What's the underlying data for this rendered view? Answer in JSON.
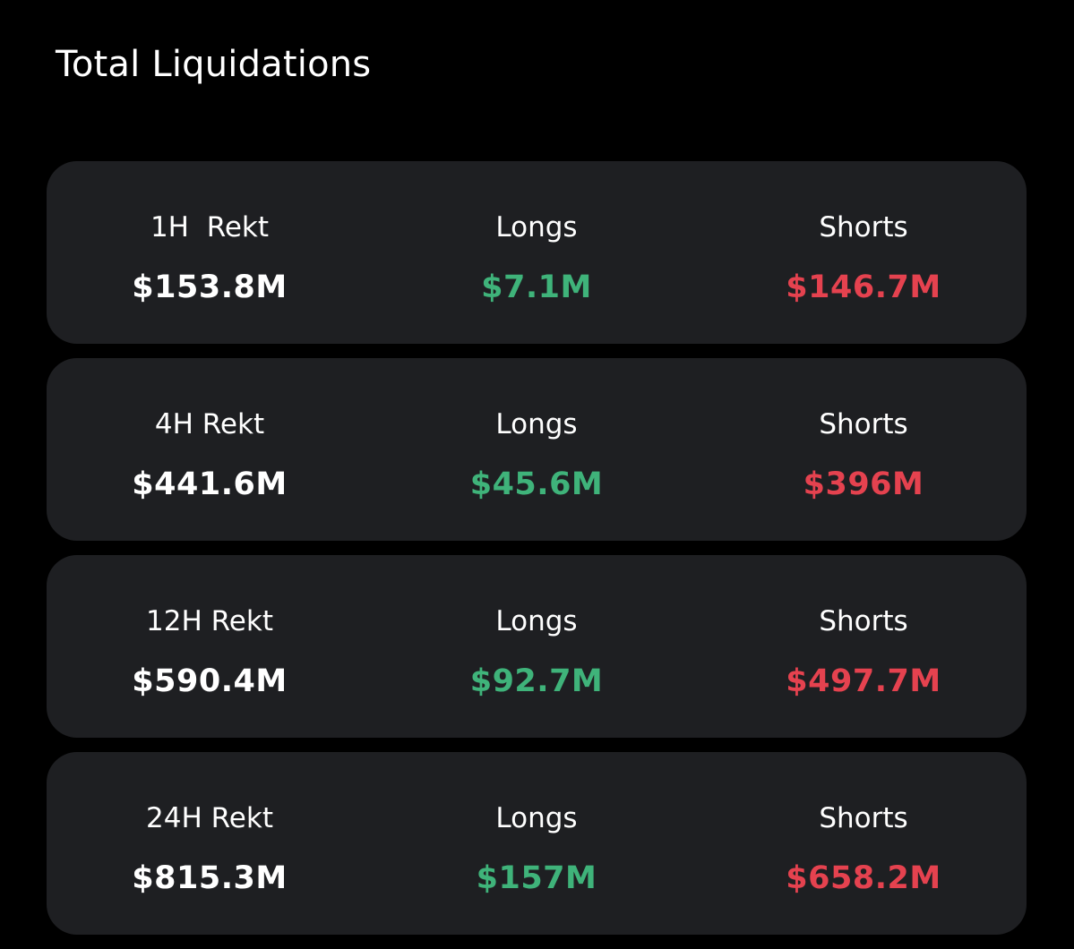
{
  "page": {
    "title": "Total Liquidations"
  },
  "colors": {
    "background": "#000000",
    "card": "#1e1f22",
    "text": "#ffffff",
    "longs": "#3fb37a",
    "shorts": "#e5424f"
  },
  "rows": [
    {
      "period_label": "1H  Rekt",
      "total": "$153.8M",
      "longs_label": "Longs",
      "longs": "$7.1M",
      "shorts_label": "Shorts",
      "shorts": "$146.7M"
    },
    {
      "period_label": "4H Rekt",
      "total": "$441.6M",
      "longs_label": "Longs",
      "longs": "$45.6M",
      "shorts_label": "Shorts",
      "shorts": "$396M"
    },
    {
      "period_label": "12H Rekt",
      "total": "$590.4M",
      "longs_label": "Longs",
      "longs": "$92.7M",
      "shorts_label": "Shorts",
      "shorts": "$497.7M"
    },
    {
      "period_label": "24H Rekt",
      "total": "$815.3M",
      "longs_label": "Longs",
      "longs": "$157M",
      "shorts_label": "Shorts",
      "shorts": "$658.2M"
    }
  ]
}
